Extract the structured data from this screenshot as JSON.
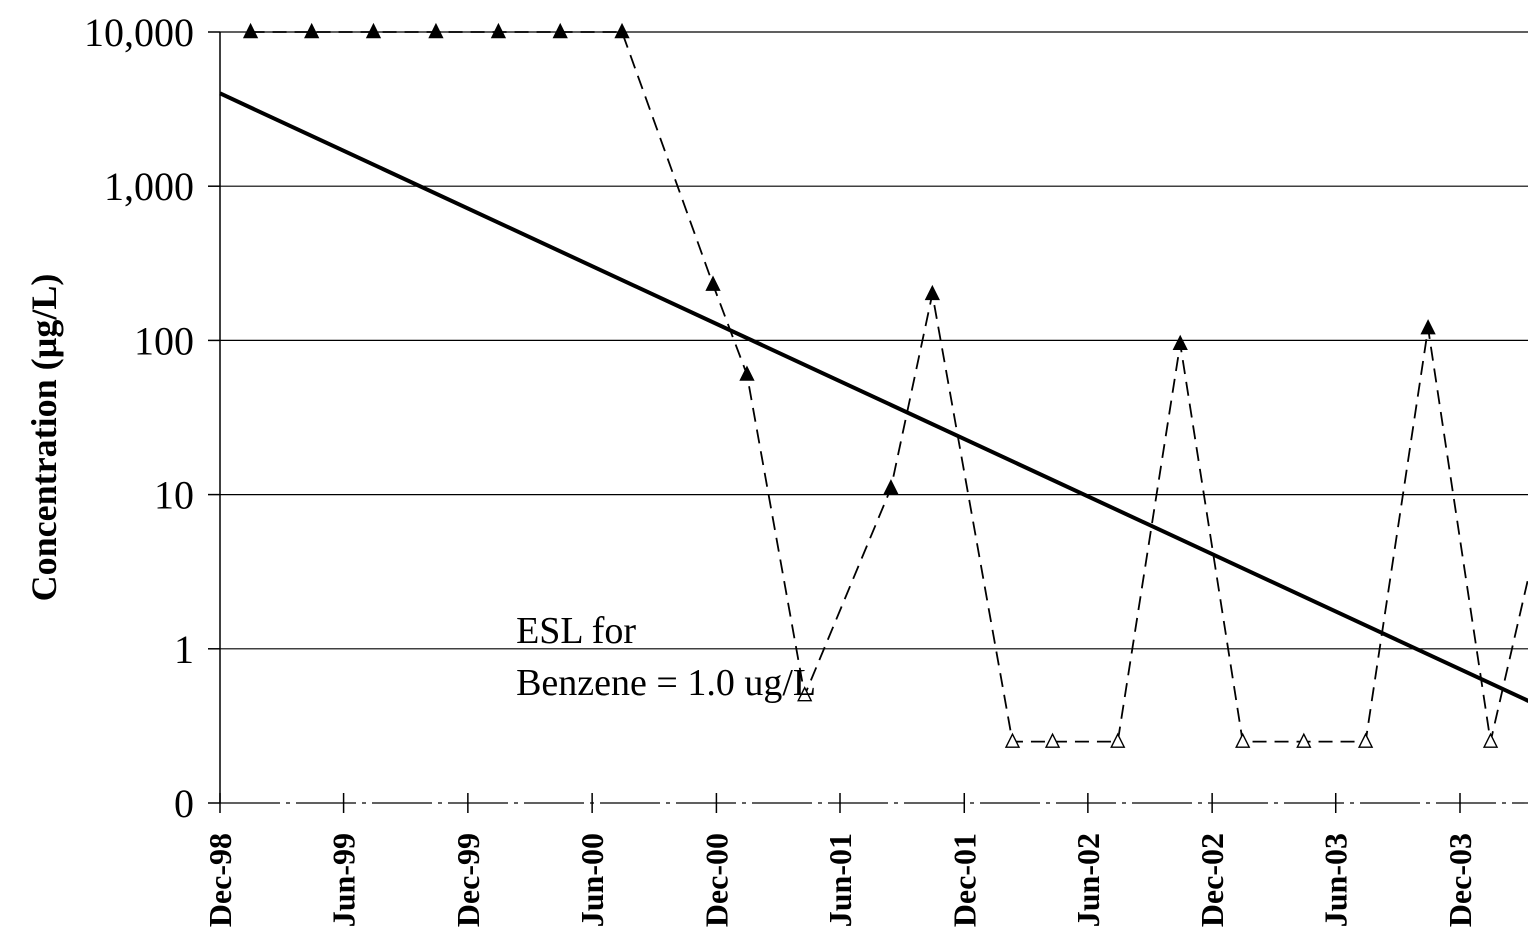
{
  "chart_data": {
    "type": "line",
    "title": "",
    "xlabel": "",
    "ylabel": "Concentration (µg/L)",
    "y_scale": "log",
    "y_tick_labels": [
      "0",
      "1",
      "10",
      "100",
      "1,000",
      "10,000"
    ],
    "y_tick_values": [
      0.1,
      1,
      10,
      100,
      1000,
      10000
    ],
    "x_tick_labels": [
      "Dec-98",
      "Jun-99",
      "Dec-99",
      "Jun-00",
      "Dec-00",
      "Jun-01",
      "Dec-01",
      "Jun-02",
      "Dec-02",
      "Jun-03",
      "Dec-03"
    ],
    "x_tick_values": [
      "1998-12-01",
      "1999-06-01",
      "1999-12-01",
      "2000-06-01",
      "2000-12-01",
      "2001-06-01",
      "2001-12-01",
      "2002-06-01",
      "2002-12-01",
      "2003-06-01",
      "2003-12-01"
    ],
    "xlim": [
      "1998-12-01",
      "2004-03-15"
    ],
    "ylim": [
      0.1,
      10000
    ],
    "grid": "horizontal",
    "series": [
      {
        "style": "dashed line with triangle markers (filled = detected, open = below detection limit)",
        "color": "#000000",
        "points": [
          {
            "x": "1999-01-15",
            "y": 10000,
            "detected": true
          },
          {
            "x": "1999-04-15",
            "y": 10000,
            "detected": true
          },
          {
            "x": "1999-07-15",
            "y": 10000,
            "detected": true
          },
          {
            "x": "1999-10-15",
            "y": 10000,
            "detected": true
          },
          {
            "x": "2000-01-15",
            "y": 10000,
            "detected": true
          },
          {
            "x": "2000-04-15",
            "y": 10000,
            "detected": true
          },
          {
            "x": "2000-07-15",
            "y": 10000,
            "detected": true
          },
          {
            "x": "2000-11-26",
            "y": 230,
            "detected": true
          },
          {
            "x": "2001-01-15",
            "y": 60,
            "detected": true
          },
          {
            "x": "2001-04-10",
            "y": 0.5,
            "detected": false
          },
          {
            "x": "2001-08-15",
            "y": 11,
            "detected": true
          },
          {
            "x": "2001-10-15",
            "y": 200,
            "detected": true
          },
          {
            "x": "2002-02-10",
            "y": 0.25,
            "detected": false
          },
          {
            "x": "2002-04-10",
            "y": 0.25,
            "detected": false
          },
          {
            "x": "2002-07-15",
            "y": 0.25,
            "detected": false
          },
          {
            "x": "2002-10-15",
            "y": 95,
            "detected": true
          },
          {
            "x": "2003-01-15",
            "y": 0.25,
            "detected": false
          },
          {
            "x": "2003-04-15",
            "y": 0.25,
            "detected": false
          },
          {
            "x": "2003-07-15",
            "y": 0.25,
            "detected": false
          },
          {
            "x": "2003-10-15",
            "y": 120,
            "detected": true
          },
          {
            "x": "2004-01-15",
            "y": 0.25,
            "detected": false
          },
          {
            "x": "2004-03-15",
            "y": 3.5,
            "detected": true
          }
        ]
      },
      {
        "style": "solid thick trend line",
        "color": "#000000",
        "points": [
          {
            "x": "1998-12-01",
            "y": 4000
          },
          {
            "x": "2004-03-15",
            "y": 0.45
          }
        ]
      }
    ],
    "annotations": [
      {
        "text_lines": [
          "ESL for",
          "Benzene = 1.0 ug/L"
        ],
        "anchor": {
          "x": "2000-02-10",
          "y": 1
        }
      }
    ]
  }
}
